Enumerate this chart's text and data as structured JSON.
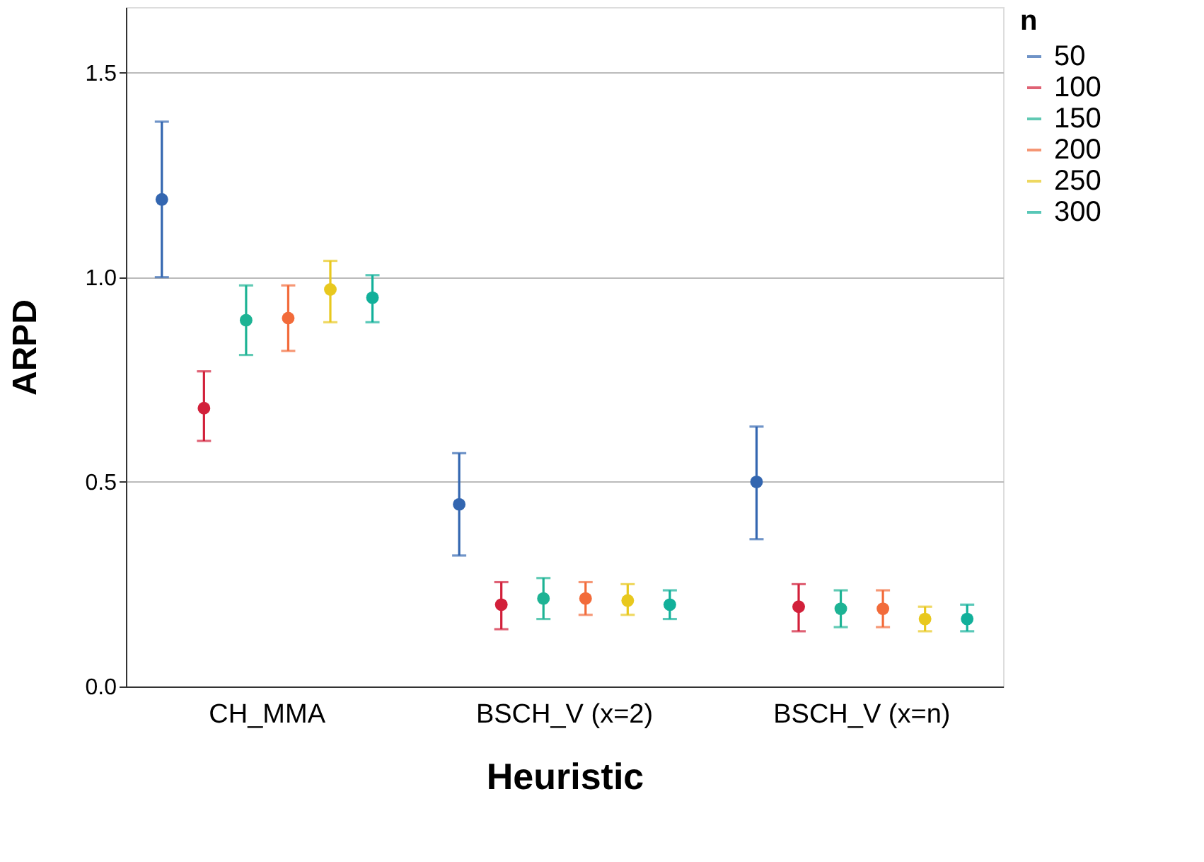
{
  "chart_data": {
    "type": "scatter",
    "xlabel": "Heuristic",
    "ylabel": "ARPD",
    "legend_title": "n",
    "categories": [
      "CH_MMA",
      "BSCH_V (x=2)",
      "BSCH_V (x=n)"
    ],
    "series": [
      {
        "name": "50",
        "color": "#3366b0",
        "values": [
          1.19,
          0.445,
          0.5
        ],
        "errors": [
          [
            1.0,
            1.38
          ],
          [
            0.32,
            0.57
          ],
          [
            0.36,
            0.635
          ]
        ]
      },
      {
        "name": "100",
        "color": "#d2203a",
        "values": [
          0.68,
          0.2,
          0.195
        ],
        "errors": [
          [
            0.6,
            0.77
          ],
          [
            0.14,
            0.255
          ],
          [
            0.135,
            0.25
          ]
        ]
      },
      {
        "name": "150",
        "color": "#1db394",
        "values": [
          0.895,
          0.215,
          0.19
        ],
        "errors": [
          [
            0.81,
            0.98
          ],
          [
            0.165,
            0.265
          ],
          [
            0.145,
            0.235
          ]
        ]
      },
      {
        "name": "200",
        "color": "#f26b3a",
        "values": [
          0.9,
          0.215,
          0.19
        ],
        "errors": [
          [
            0.82,
            0.98
          ],
          [
            0.175,
            0.255
          ],
          [
            0.145,
            0.235
          ]
        ]
      },
      {
        "name": "250",
        "color": "#e8c81e",
        "values": [
          0.97,
          0.21,
          0.165
        ],
        "errors": [
          [
            0.89,
            1.04
          ],
          [
            0.175,
            0.25
          ],
          [
            0.135,
            0.195
          ]
        ]
      },
      {
        "name": "300",
        "color": "#12b09a",
        "values": [
          0.95,
          0.2,
          0.165
        ],
        "errors": [
          [
            0.89,
            1.005
          ],
          [
            0.165,
            0.235
          ],
          [
            0.135,
            0.2
          ]
        ]
      }
    ],
    "ylim": [
      0,
      1.66
    ],
    "yticks": [
      {
        "value": 0,
        "label": "0.0"
      },
      {
        "value": 0.5,
        "label": "0.5"
      },
      {
        "value": 1.0,
        "label": "1.0"
      },
      {
        "value": 1.5,
        "label": "1.5"
      }
    ],
    "grid": "y",
    "legend": "top right",
    "marker": "circle"
  }
}
